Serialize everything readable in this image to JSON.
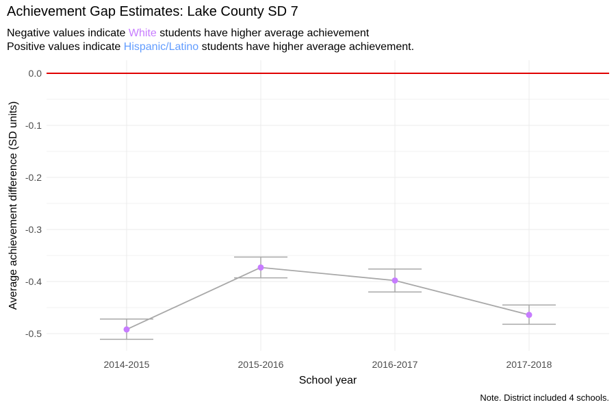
{
  "chart_data": {
    "type": "line",
    "title": "Achievement Gap Estimates: Lake County SD 7",
    "subtitle_line1": {
      "pre": "Negative values indicate ",
      "group": "White",
      "post": " students have higher average achievement"
    },
    "subtitle_line2": {
      "pre": "Positive values indicate ",
      "group": "Hispanic/Latino",
      "post": " students have higher average achievement."
    },
    "xlabel": "School year",
    "ylabel": "Average achievement difference (SD units)",
    "caption": "Note. District included 4 schools.",
    "categories": [
      "2014-2015",
      "2015-2016",
      "2016-2017",
      "2017-2018"
    ],
    "values": [
      -0.492,
      -0.373,
      -0.398,
      -0.464
    ],
    "ci_low": [
      -0.511,
      -0.393,
      -0.42,
      -0.482
    ],
    "ci_high": [
      -0.472,
      -0.353,
      -0.376,
      -0.445
    ],
    "yticks": [
      0.0,
      -0.1,
      -0.2,
      -0.3,
      -0.4,
      -0.5
    ],
    "ytick_labels": [
      "0.0",
      "-0.1",
      "-0.2",
      "-0.3",
      "-0.4",
      "-0.5"
    ],
    "ylim": [
      -0.525,
      0.02
    ],
    "reference_line": 0,
    "grid": true,
    "colors": {
      "white_group": "#c77cff",
      "hispanic_group": "#619cff",
      "point": "#c77cff",
      "line": "#a8a8a8",
      "reference": "#e00000",
      "grid": "#ebebeb"
    }
  }
}
